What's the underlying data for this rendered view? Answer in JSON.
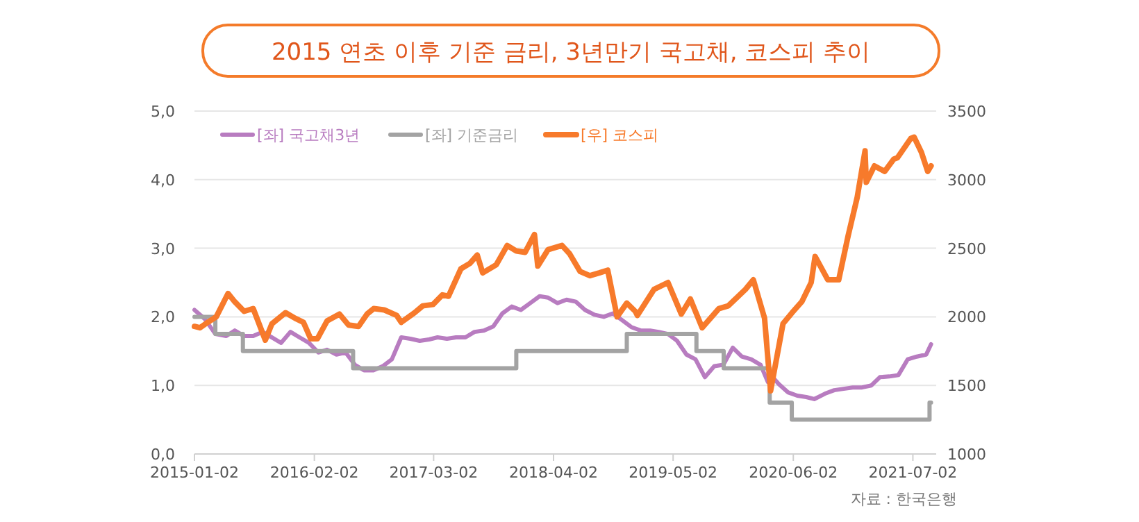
{
  "chart_data": {
    "type": "line",
    "title": "2015 연초 이후 기준 금리, 3년만기 국고채, 코스피 추이",
    "annotations": [
      "자료 : 한국은행"
    ],
    "xlim": [
      "2015-01-02",
      "2021-09-17"
    ],
    "xticks": [
      "2015-01-02",
      "2016-02-02",
      "2017-03-02",
      "2018-04-02",
      "2019-05-02",
      "2020-06-02",
      "2021-07-02"
    ],
    "ylim": [
      0,
      5
    ],
    "yticks": [
      {
        "value": 0,
        "label": "0,0"
      },
      {
        "value": 1,
        "label": "1,0"
      },
      {
        "value": 2,
        "label": "2,0"
      },
      {
        "value": 3,
        "label": "3,0"
      },
      {
        "value": 4,
        "label": "4,0"
      },
      {
        "value": 5,
        "label": "5,0"
      }
    ],
    "y2lim": [
      1000,
      3500
    ],
    "y2ticks": [
      1000,
      1500,
      2000,
      2500,
      3000,
      3500
    ],
    "grid": "y",
    "legend": "top left",
    "marker": "none",
    "line_style": "solid",
    "series": [
      {
        "name": "[좌] 국고채3년",
        "color": "#b87cc0",
        "x": [
          "2015-01-02",
          "2015-02-05",
          "2015-03-12",
          "2015-04-17",
          "2015-05-15",
          "2015-06-15",
          "2015-07-15",
          "2015-08-15",
          "2015-09-15",
          "2015-10-15",
          "2015-11-15",
          "2015-12-15",
          "2016-01-15",
          "2016-02-15",
          "2016-03-15",
          "2016-04-15",
          "2016-05-15",
          "2016-06-15",
          "2016-07-15",
          "2016-08-15",
          "2016-09-15",
          "2016-10-15",
          "2016-11-15",
          "2016-12-15",
          "2017-01-15",
          "2017-02-15",
          "2017-03-15",
          "2017-04-15",
          "2017-05-15",
          "2017-06-15",
          "2017-07-15",
          "2017-08-15",
          "2017-09-15",
          "2017-10-15",
          "2017-11-15",
          "2017-12-15",
          "2018-01-15",
          "2018-02-15",
          "2018-03-15",
          "2018-04-15",
          "2018-05-15",
          "2018-06-15",
          "2018-07-15",
          "2018-08-15",
          "2018-09-15",
          "2018-10-15",
          "2018-11-15",
          "2018-12-15",
          "2019-01-15",
          "2019-02-15",
          "2019-03-15",
          "2019-04-15",
          "2019-05-15",
          "2019-06-15",
          "2019-07-15",
          "2019-08-15",
          "2019-09-15",
          "2019-10-15",
          "2019-11-15",
          "2019-12-15",
          "2020-01-15",
          "2020-02-15",
          "2020-03-10",
          "2020-03-20",
          "2020-04-15",
          "2020-05-15",
          "2020-06-15",
          "2020-07-15",
          "2020-08-10",
          "2020-09-15",
          "2020-10-15",
          "2020-11-15",
          "2020-12-15",
          "2021-01-15",
          "2021-02-15",
          "2021-03-15",
          "2021-04-15",
          "2021-05-15",
          "2021-06-15",
          "2021-07-15",
          "2021-08-15",
          "2021-08-31"
        ],
        "values": [
          2.1,
          1.97,
          1.75,
          1.72,
          1.8,
          1.72,
          1.72,
          1.78,
          1.7,
          1.62,
          1.78,
          1.7,
          1.62,
          1.48,
          1.52,
          1.45,
          1.48,
          1.3,
          1.22,
          1.22,
          1.28,
          1.38,
          1.7,
          1.68,
          1.65,
          1.67,
          1.7,
          1.68,
          1.7,
          1.7,
          1.78,
          1.8,
          1.86,
          2.05,
          2.15,
          2.1,
          2.2,
          2.3,
          2.28,
          2.2,
          2.25,
          2.22,
          2.1,
          2.03,
          2.0,
          2.05,
          1.95,
          1.85,
          1.8,
          1.8,
          1.78,
          1.75,
          1.65,
          1.45,
          1.38,
          1.12,
          1.28,
          1.3,
          1.55,
          1.42,
          1.38,
          1.3,
          1.05,
          1.15,
          1.02,
          0.9,
          0.85,
          0.83,
          0.8,
          0.88,
          0.93,
          0.95,
          0.97,
          0.97,
          1.0,
          1.12,
          1.13,
          1.15,
          1.38,
          1.42,
          1.45,
          1.6
        ]
      },
      {
        "name": "[좌] 기준금리",
        "color": "#a3a3a3",
        "type": "step",
        "x": [
          "2015-01-02",
          "2015-03-12",
          "2015-06-11",
          "2016-06-09",
          "2017-11-30",
          "2018-11-30",
          "2019-07-18",
          "2019-10-16",
          "2020-03-16",
          "2020-05-28",
          "2021-08-26",
          "2021-08-31"
        ],
        "values": [
          2.0,
          1.75,
          1.5,
          1.25,
          1.5,
          1.75,
          1.5,
          1.25,
          0.75,
          0.5,
          0.75,
          0.75
        ]
      },
      {
        "name": "[우] 코스피",
        "color": "#f77a2b",
        "axis": "y2",
        "x": [
          "2015-01-02",
          "2015-01-20",
          "2015-02-15",
          "2015-03-15",
          "2015-04-23",
          "2015-05-15",
          "2015-06-15",
          "2015-07-15",
          "2015-08-24",
          "2015-09-15",
          "2015-10-30",
          "2015-11-30",
          "2015-12-28",
          "2016-01-21",
          "2016-02-12",
          "2016-03-15",
          "2016-04-25",
          "2016-05-25",
          "2016-06-27",
          "2016-07-25",
          "2016-08-16",
          "2016-09-20",
          "2016-10-31",
          "2016-11-15",
          "2016-12-29",
          "2017-01-25",
          "2017-02-28",
          "2017-03-31",
          "2017-04-20",
          "2017-05-31",
          "2017-06-30",
          "2017-07-24",
          "2017-08-11",
          "2017-09-25",
          "2017-10-31",
          "2017-11-30",
          "2017-12-29",
          "2018-01-29",
          "2018-02-09",
          "2018-03-15",
          "2018-04-30",
          "2018-05-25",
          "2018-06-29",
          "2018-07-31",
          "2018-08-31",
          "2018-09-28",
          "2018-10-29",
          "2018-11-30",
          "2018-12-28",
          "2019-01-04",
          "2019-02-28",
          "2019-04-15",
          "2019-05-29",
          "2019-06-28",
          "2019-08-06",
          "2019-09-30",
          "2019-10-31",
          "2019-12-27",
          "2020-01-22",
          "2020-02-28",
          "2020-03-19",
          "2020-04-29",
          "2020-05-29",
          "2020-06-30",
          "2020-07-31",
          "2020-08-13",
          "2020-09-24",
          "2020-10-30",
          "2020-11-30",
          "2020-12-30",
          "2021-01-25",
          "2021-01-29",
          "2021-02-25",
          "2021-03-31",
          "2021-04-30",
          "2021-05-12",
          "2021-06-25",
          "2021-07-06",
          "2021-07-30",
          "2021-08-20",
          "2021-08-31"
        ],
        "values": [
          1930,
          1920,
          1960,
          2000,
          2170,
          2110,
          2040,
          2060,
          1830,
          1950,
          2030,
          1990,
          1960,
          1840,
          1840,
          1970,
          2020,
          1940,
          1930,
          2020,
          2060,
          2050,
          2010,
          1960,
          2030,
          2080,
          2090,
          2160,
          2150,
          2350,
          2390,
          2450,
          2320,
          2380,
          2520,
          2480,
          2470,
          2600,
          2370,
          2490,
          2520,
          2460,
          2330,
          2300,
          2320,
          2340,
          2000,
          2100,
          2040,
          2010,
          2200,
          2250,
          2020,
          2130,
          1920,
          2060,
          2080,
          2200,
          2270,
          1990,
          1460,
          1950,
          2030,
          2110,
          2250,
          2440,
          2270,
          2270,
          2590,
          2870,
          3210,
          2980,
          3100,
          3060,
          3150,
          3160,
          3300,
          3310,
          3200,
          3060,
          3100
        ]
      }
    ]
  }
}
